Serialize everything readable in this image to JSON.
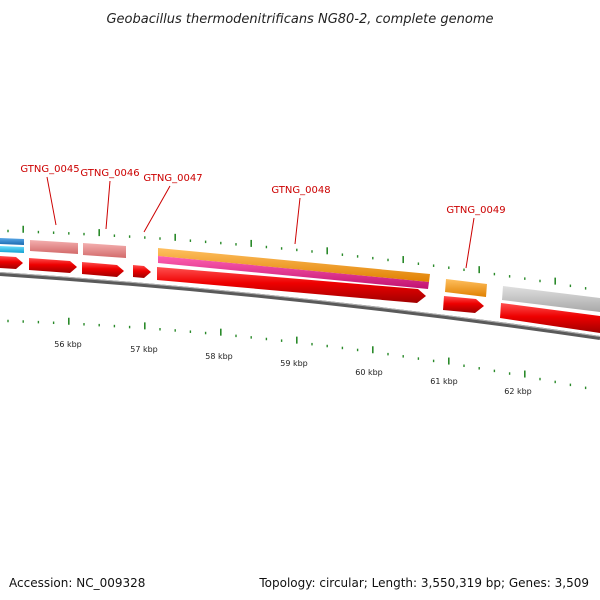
{
  "title": "Geobacillus thermodenitrificans NG80-2, complete genome",
  "footer": {
    "accession": "Accession: NC_009328",
    "summary": "Topology: circular; Length: 3,550,319 bp; Genes: 3,509"
  },
  "colors": {
    "backbone": "#777777",
    "cds": "#ee0000",
    "gene_label": "#cc0000",
    "tick": "#2a8a2a",
    "pink_feature": "#e58a8a",
    "orange_feature": "#f5a020",
    "magenta_feature": "#e8208c",
    "grey_feature": "#c0c0c0",
    "blue_feature": "#2a8ad0",
    "cyan_feature": "#20c0e8"
  },
  "gene_labels": [
    {
      "name": "GTNG_0045"
    },
    {
      "name": "GTNG_0046"
    },
    {
      "name": "GTNG_0047"
    },
    {
      "name": "GTNG_0048"
    },
    {
      "name": "GTNG_0049"
    }
  ],
  "kbp_labels": [
    "56 kbp",
    "57 kbp",
    "58 kbp",
    "59 kbp",
    "60 kbp",
    "61 kbp",
    "62 kbp"
  ]
}
